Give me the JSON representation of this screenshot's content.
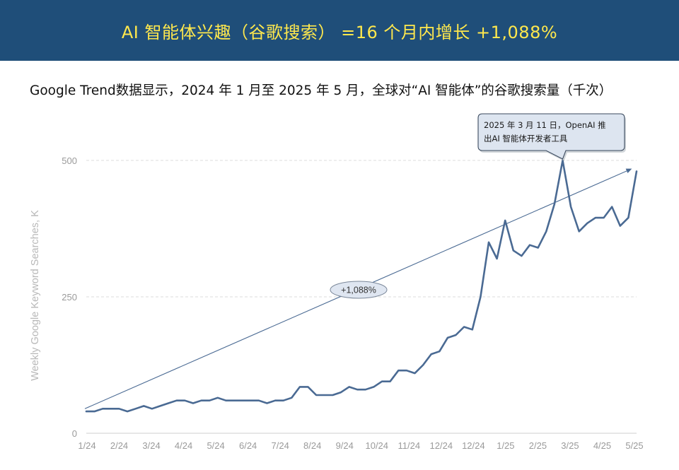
{
  "header": {
    "title": "AI 智能体兴趣（谷歌搜索） =16 个月内增长 +1,088%",
    "background": "#1f4e79",
    "title_color": "#ffe84d"
  },
  "subtitle": "Google Trend数据显示，2024 年 1 月至 2025 年 5 月，全球对“AI 智能体”的谷歌搜索量（千次）",
  "chart_data": {
    "type": "line",
    "title": "",
    "ylabel": "Weekly Google Keyword Searches, K",
    "xlabel": "",
    "ylim": [
      0,
      500
    ],
    "yticks": [
      0,
      250,
      500
    ],
    "grid": "horizontal dashed",
    "x_tick_labels": [
      "1/24",
      "2/24",
      "3/24",
      "4/24",
      "5/24",
      "6/24",
      "7/24",
      "8/24",
      "9/24",
      "10/24",
      "11/24",
      "12/24",
      "12/24",
      "1/25",
      "2/25",
      "3/25",
      "4/25",
      "5/25"
    ],
    "series": [
      {
        "color": "#4a6a93",
        "values": [
          40,
          40,
          45,
          45,
          45,
          40,
          45,
          50,
          45,
          50,
          55,
          60,
          60,
          55,
          60,
          60,
          65,
          60,
          60,
          60,
          60,
          60,
          55,
          60,
          60,
          65,
          85,
          85,
          70,
          70,
          70,
          75,
          85,
          80,
          80,
          85,
          95,
          95,
          115,
          115,
          110,
          125,
          145,
          150,
          175,
          180,
          195,
          190,
          250,
          350,
          320,
          390,
          335,
          325,
          345,
          340,
          370,
          420,
          500,
          415,
          370,
          385,
          395,
          395,
          415,
          380,
          395,
          480
        ]
      }
    ],
    "trend_line": {
      "from": [
        0,
        45
      ],
      "to": [
        66,
        485
      ],
      "color": "#4a6a93"
    },
    "annotations": {
      "growth_label": "+1,088%",
      "event_callout": [
        "2025 年 3 月 11 日，OpenAI 推",
        "出AI 智能体开发者工具"
      ]
    }
  }
}
